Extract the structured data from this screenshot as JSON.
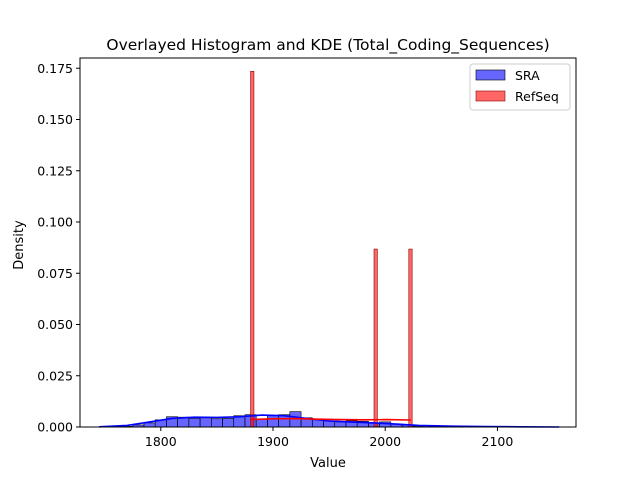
{
  "chart_data": {
    "type": "histogram",
    "title": "Overlayed Histogram and KDE (Total_Coding_Sequences)",
    "xlabel": "Value",
    "ylabel": "Density",
    "xlim": [
      1728,
      2170
    ],
    "ylim": [
      0,
      0.18
    ],
    "x_ticks": [
      1800,
      1900,
      2000,
      2100
    ],
    "y_ticks": [
      0.0,
      0.025,
      0.05,
      0.075,
      0.1,
      0.125,
      0.15,
      0.175
    ],
    "y_tick_labels": [
      "0.000",
      "0.025",
      "0.050",
      "0.075",
      "0.100",
      "0.125",
      "0.150",
      "0.175"
    ],
    "grid": false,
    "legend_position": "top-right",
    "series": [
      {
        "name": "SRA",
        "color": "#0000ff",
        "bin_edges": [
          1765,
          1775,
          1785,
          1795,
          1805,
          1815,
          1825,
          1835,
          1845,
          1855,
          1865,
          1875,
          1885,
          1895,
          1905,
          1915,
          1925,
          1935,
          1945,
          1955,
          1965,
          1975,
          1985,
          1995,
          2005,
          2015,
          2025,
          2035
        ],
        "densities": [
          0.0003,
          0.001,
          0.002,
          0.0035,
          0.005,
          0.0048,
          0.0042,
          0.0045,
          0.004,
          0.0042,
          0.0055,
          0.006,
          0.004,
          0.0055,
          0.006,
          0.0075,
          0.0045,
          0.0035,
          0.003,
          0.0025,
          0.003,
          0.0028,
          0.002,
          0.0025,
          0.0015,
          0.001,
          0.0005
        ],
        "kde_x": [
          1745,
          1770,
          1790,
          1810,
          1830,
          1850,
          1870,
          1890,
          1910,
          1930,
          1950,
          1970,
          1990,
          2010,
          2030,
          2060,
          2090,
          2120,
          2155
        ],
        "kde_y": [
          0.0001,
          0.0008,
          0.0025,
          0.0042,
          0.0048,
          0.0047,
          0.005,
          0.0058,
          0.0055,
          0.0042,
          0.003,
          0.0024,
          0.002,
          0.0014,
          0.0008,
          0.0004,
          0.0002,
          0.0001,
          0.0
        ]
      },
      {
        "name": "RefSeq",
        "color": "#ff0000",
        "bin_edges": [
          [
            1880,
            1883
          ],
          [
            1990,
            1993
          ],
          [
            2021,
            2024
          ]
        ],
        "densities": [
          0.1735,
          0.0868,
          0.0868
        ],
        "kde_x": [
          1880,
          1900,
          1920,
          1940,
          1960,
          1980,
          2000,
          2023
        ],
        "kde_y": [
          0.0036,
          0.004,
          0.0041,
          0.0038,
          0.0036,
          0.0035,
          0.0036,
          0.0034
        ]
      }
    ]
  }
}
